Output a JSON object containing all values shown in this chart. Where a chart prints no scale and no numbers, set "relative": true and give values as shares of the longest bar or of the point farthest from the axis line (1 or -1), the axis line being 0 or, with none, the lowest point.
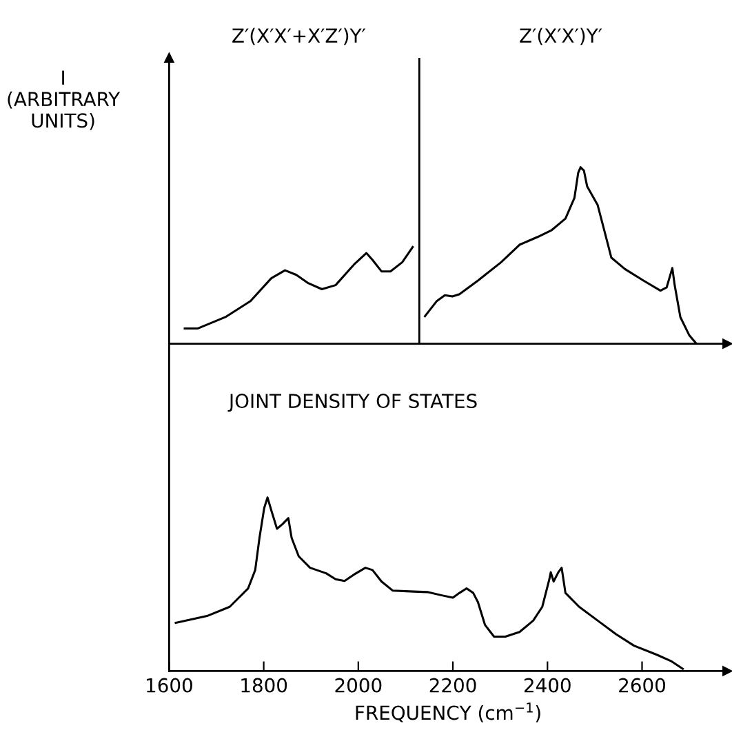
{
  "chart_data": [
    {
      "type": "line",
      "relative": true,
      "ylabel": "I\n(ARBITRARY\nUNITS)",
      "xlim": [
        1600,
        2780
      ],
      "tick_labels": false,
      "grid": false,
      "legend": false,
      "marker": "none",
      "line_style": "solid",
      "ref_lines": [
        {
          "axis": "x",
          "value": 2129,
          "color": "#000000"
        }
      ],
      "annotations": [
        "Z′(X′X′+X′Z′)Y′",
        "Z′(X′X′)Y′"
      ],
      "series": [
        {
          "color": "#000000",
          "x": [
            1633,
            1660,
            1719,
            1772,
            1816,
            1845,
            1869,
            1893,
            1923,
            1952,
            1991,
            2017,
            2030,
            2049,
            2068,
            2093,
            2115
          ],
          "values": [
            0.086,
            0.086,
            0.151,
            0.242,
            0.371,
            0.416,
            0.39,
            0.345,
            0.309,
            0.332,
            0.449,
            0.514,
            0.475,
            0.41,
            0.41,
            0.462,
            0.548
          ]
        },
        {
          "color": "#000000",
          "x": [
            2141,
            2166,
            2183,
            2199,
            2214,
            2253,
            2302,
            2341,
            2379,
            2409,
            2438,
            2457,
            2465,
            2470,
            2477,
            2484,
            2506,
            2520,
            2535,
            2564,
            2603,
            2639,
            2652,
            2664,
            2669,
            2681,
            2700,
            2715
          ],
          "values": [
            0.156,
            0.242,
            0.275,
            0.268,
            0.281,
            0.358,
            0.462,
            0.561,
            0.605,
            0.644,
            0.709,
            0.826,
            0.969,
            1,
            0.982,
            0.891,
            0.787,
            0.644,
            0.488,
            0.423,
            0.358,
            0.301,
            0.319,
            0.429,
            0.332,
            0.151,
            0.047,
            0
          ]
        }
      ]
    },
    {
      "type": "line",
      "relative": true,
      "title": "JOINT DENSITY OF STATES",
      "xlabel": "FREQUENCY (cm$^{−1}$)",
      "xlim": [
        1600,
        2780
      ],
      "xticks": [
        1600,
        1800,
        2000,
        2200,
        2400,
        2600
      ],
      "tick_labels": "x",
      "grid": false,
      "legend": false,
      "marker": "none",
      "line_style": "solid",
      "series": [
        {
          "color": "#000000",
          "x": [
            1614,
            1680,
            1728,
            1767,
            1782,
            1791,
            1801,
            1808,
            1816,
            1828,
            1840,
            1852,
            1859,
            1874,
            1898,
            1932,
            1952,
            1971,
            1991,
            2015,
            2030,
            2049,
            2073,
            2117,
            2146,
            2175,
            2200,
            2214,
            2229,
            2243,
            2253,
            2268,
            2287,
            2311,
            2341,
            2370,
            2389,
            2404,
            2407,
            2413,
            2423,
            2430,
            2438,
            2467,
            2506,
            2545,
            2583,
            2632,
            2661,
            2686
          ],
          "values": [
            0.278,
            0.317,
            0.37,
            0.476,
            0.582,
            0.767,
            0.939,
            1,
            0.926,
            0.82,
            0.847,
            0.881,
            0.767,
            0.661,
            0.595,
            0.563,
            0.529,
            0.519,
            0.556,
            0.595,
            0.582,
            0.516,
            0.463,
            0.458,
            0.455,
            0.437,
            0.423,
            0.45,
            0.476,
            0.45,
            0.397,
            0.265,
            0.198,
            0.198,
            0.225,
            0.291,
            0.37,
            0.529,
            0.569,
            0.516,
            0.569,
            0.595,
            0.45,
            0.37,
            0.291,
            0.212,
            0.146,
            0.093,
            0.058,
            0.013
          ]
        }
      ]
    }
  ]
}
